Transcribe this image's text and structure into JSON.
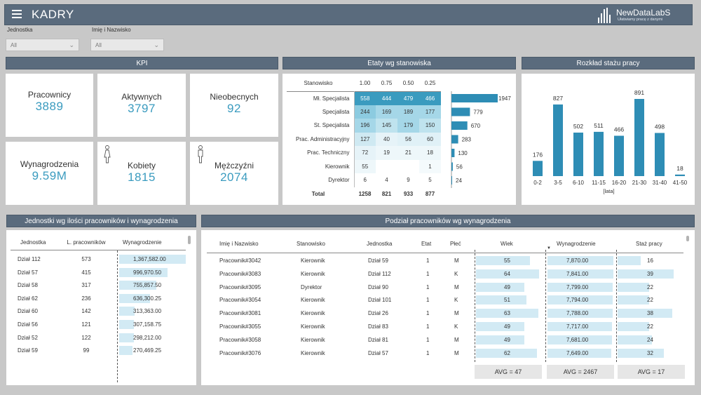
{
  "app": {
    "title": "KADRY",
    "logo_name": "NewDataLabS",
    "logo_tagline": "Ułatwiamy pracę z danymi"
  },
  "filters": [
    {
      "label": "Jednostka",
      "value": "All"
    },
    {
      "label": "Imię i Nazwisko",
      "value": "All"
    }
  ],
  "kpi": {
    "title": "KPI",
    "cards": [
      {
        "label": "Pracownicy",
        "value": "3889"
      },
      {
        "label": "Aktywnych",
        "value": "3797"
      },
      {
        "label": "Nieobecnych",
        "value": "92"
      },
      {
        "label": "Wynagrodzenia",
        "value": "9.59M"
      },
      {
        "label": "Kobiety",
        "value": "1815"
      },
      {
        "label": "Mężczyźni",
        "value": "2074"
      }
    ]
  },
  "etaty": {
    "title": "Etaty wg stanowiska",
    "col_header": "Stanowisko",
    "columns": [
      "1.00",
      "0.75",
      "0.50",
      "0.25"
    ],
    "rows": [
      {
        "label": "Mł. Specjalista",
        "values": [
          "558",
          "444",
          "479",
          "466"
        ],
        "total": "1947"
      },
      {
        "label": "Specjalista",
        "values": [
          "244",
          "169",
          "189",
          "177"
        ],
        "total": "779"
      },
      {
        "label": "St. Specjalista",
        "values": [
          "196",
          "145",
          "179",
          "150"
        ],
        "total": "670"
      },
      {
        "label": "Prac. Administracyjny",
        "values": [
          "127",
          "40",
          "56",
          "60"
        ],
        "total": "283"
      },
      {
        "label": "Prac. Techniczny",
        "values": [
          "72",
          "19",
          "21",
          "18"
        ],
        "total": "130"
      },
      {
        "label": "Kierownik",
        "values": [
          "55",
          "",
          "",
          "1"
        ],
        "total": "56"
      },
      {
        "label": "Dyrektor",
        "values": [
          "6",
          "4",
          "9",
          "5"
        ],
        "total": "24"
      }
    ],
    "totals": {
      "label": "Total",
      "values": [
        "1258",
        "821",
        "933",
        "877"
      ]
    },
    "bar_values": [
      1947,
      779,
      670,
      283,
      130,
      56,
      24
    ]
  },
  "staz": {
    "title": "Rozkład stażu pracy",
    "chart_data": {
      "type": "bar",
      "categories": [
        "0-2",
        "3-5",
        "6-10",
        "11-15",
        "16-20",
        "21-30",
        "31-40",
        "41-50"
      ],
      "values": [
        176,
        827,
        502,
        511,
        466,
        891,
        498,
        18
      ],
      "xlabel": "[lata]",
      "color": "#2e8db5"
    }
  },
  "jednostki": {
    "title": "Jednostki wg ilości pracowników i wynagrodzenia",
    "headers": [
      "Jednostka",
      "L. pracowników",
      "Wynagrodzenie"
    ],
    "rows": [
      {
        "name": "Dział 112",
        "count": "573",
        "salary": "1,367,582.00",
        "v": 1367582
      },
      {
        "name": "Dział 57",
        "count": "415",
        "salary": "996,970.50",
        "v": 996970.5
      },
      {
        "name": "Dział 58",
        "count": "317",
        "salary": "755,857.50",
        "v": 755857.5
      },
      {
        "name": "Dział 62",
        "count": "236",
        "salary": "636,300.25",
        "v": 636300.25
      },
      {
        "name": "Dział 60",
        "count": "142",
        "salary": "313,363.00",
        "v": 313363
      },
      {
        "name": "Dział 56",
        "count": "121",
        "salary": "307,158.75",
        "v": 307158.75
      },
      {
        "name": "Dział 52",
        "count": "122",
        "salary": "298,212.00",
        "v": 298212
      },
      {
        "name": "Dział 59",
        "count": "99",
        "salary": "270,469.25",
        "v": 270469.25
      }
    ]
  },
  "podzial": {
    "title": "Podział pracowników wg wynagrodzenia",
    "headers": [
      "Imię i Nazwisko",
      "Stanowisko",
      "Jednostka",
      "Etat",
      "Płeć",
      "Wiek",
      "Wynagrodzenie",
      "Staż pracy"
    ],
    "rows": [
      {
        "name": "Pracownik#3042",
        "pos": "Kierownik",
        "unit": "Dział 59",
        "etat": "1",
        "sex": "M",
        "age": "55",
        "salary": "7,870.00",
        "staz": "16"
      },
      {
        "name": "Pracownik#3083",
        "pos": "Kierownik",
        "unit": "Dział 112",
        "etat": "1",
        "sex": "K",
        "age": "64",
        "salary": "7,841.00",
        "staz": "39"
      },
      {
        "name": "Pracownik#3095",
        "pos": "Dyrektor",
        "unit": "Dział 90",
        "etat": "1",
        "sex": "M",
        "age": "49",
        "salary": "7,799.00",
        "staz": "22"
      },
      {
        "name": "Pracownik#3054",
        "pos": "Kierownik",
        "unit": "Dział 101",
        "etat": "1",
        "sex": "K",
        "age": "51",
        "salary": "7,794.00",
        "staz": "22"
      },
      {
        "name": "Pracownik#3081",
        "pos": "Kierownik",
        "unit": "Dział 26",
        "etat": "1",
        "sex": "M",
        "age": "63",
        "salary": "7,788.00",
        "staz": "38"
      },
      {
        "name": "Pracownik#3055",
        "pos": "Kierownik",
        "unit": "Dział 83",
        "etat": "1",
        "sex": "K",
        "age": "49",
        "salary": "7,717.00",
        "staz": "22"
      },
      {
        "name": "Pracownik#3058",
        "pos": "Kierownik",
        "unit": "Dział 81",
        "etat": "1",
        "sex": "M",
        "age": "49",
        "salary": "7,681.00",
        "staz": "24"
      },
      {
        "name": "Pracownik#3076",
        "pos": "Kierownik",
        "unit": "Dział 57",
        "etat": "1",
        "sex": "M",
        "age": "62",
        "salary": "7,649.00",
        "staz": "32"
      }
    ],
    "avg": {
      "age": "AVG = 47",
      "salary": "AVG = 2467",
      "staz": "AVG = 17"
    }
  }
}
